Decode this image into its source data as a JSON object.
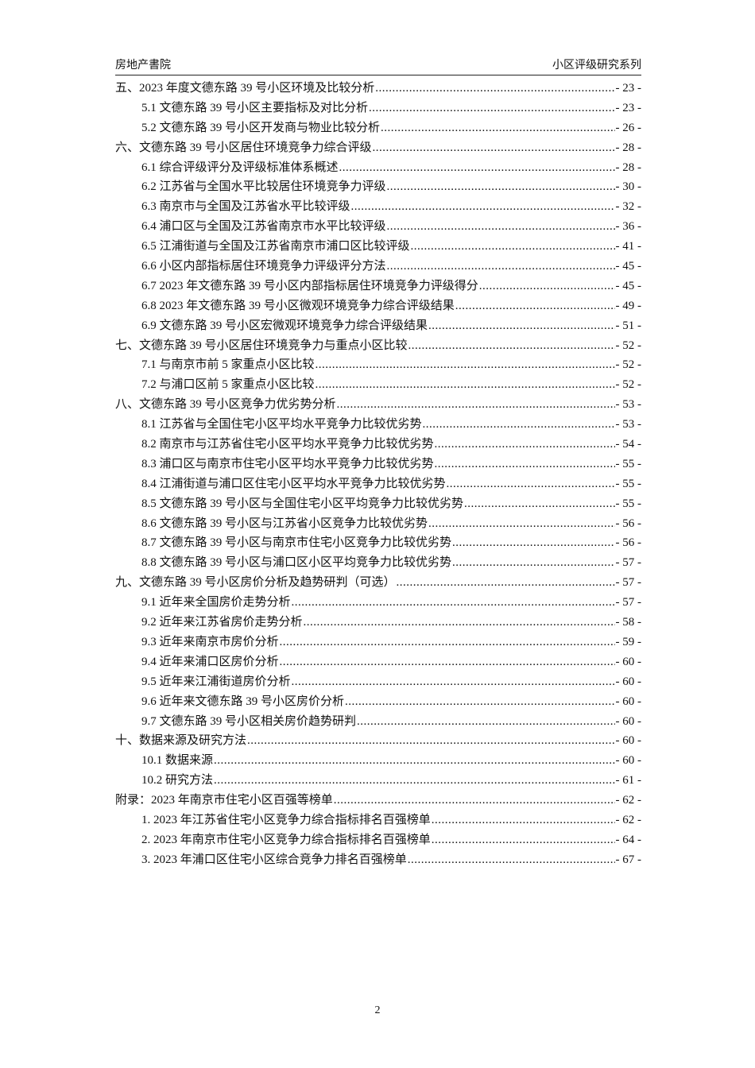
{
  "header": {
    "left": "房地产書院",
    "right": "小区评级研究系列"
  },
  "toc": [
    {
      "level": 1,
      "title": "五、2023 年度文德东路 39 号小区环境及比较分析",
      "page": "- 23 -"
    },
    {
      "level": 2,
      "title": "5.1  文德东路 39 号小区主要指标及对比分析",
      "page": "- 23 -"
    },
    {
      "level": 2,
      "title": "5.2  文德东路 39 号小区开发商与物业比较分析",
      "page": "- 26 -"
    },
    {
      "level": 1,
      "title": "六、文德东路 39 号小区居住环境竞争力综合评级",
      "page": "- 28 -"
    },
    {
      "level": 2,
      "title": "6.1  综合评级评分及评级标准体系概述",
      "page": "- 28 -"
    },
    {
      "level": 2,
      "title": "6.2  江苏省与全国水平比较居住环境竞争力评级",
      "page": "- 30 -"
    },
    {
      "level": 2,
      "title": "6.3  南京市与全国及江苏省水平比较评级",
      "page": "- 32 -"
    },
    {
      "level": 2,
      "title": "6.4  浦口区与全国及江苏省南京市水平比较评级",
      "page": "- 36 -"
    },
    {
      "level": 2,
      "title": "6.5  江浦街道与全国及江苏省南京市浦口区比较评级",
      "page": "- 41 -"
    },
    {
      "level": 2,
      "title": "6.6  小区内部指标居住环境竞争力评级评分方法",
      "page": "- 45 -"
    },
    {
      "level": 2,
      "title": "6.7  2023 年文德东路 39 号小区内部指标居住环境竞争力评级得分",
      "page": "- 45 -"
    },
    {
      "level": 2,
      "title": "6.8  2023 年文德东路 39 号小区微观环境竞争力综合评级结果",
      "page": "- 49 -"
    },
    {
      "level": 2,
      "title": "6.9  文德东路 39 号小区宏微观环境竞争力综合评级结果",
      "page": "- 51 -"
    },
    {
      "level": 1,
      "title": "七、文德东路 39 号小区居住环境竞争力与重点小区比较",
      "page": "- 52 -"
    },
    {
      "level": 2,
      "title": "7.1  与南京市前 5 家重点小区比较",
      "page": "- 52 -"
    },
    {
      "level": 2,
      "title": "7.2  与浦口区前 5 家重点小区比较",
      "page": "- 52 -"
    },
    {
      "level": 1,
      "title": "八、文德东路 39 号小区竞争力优劣势分析",
      "page": "- 53 -"
    },
    {
      "level": 2,
      "title": "8.1  江苏省与全国住宅小区平均水平竞争力比较优劣势",
      "page": "- 53 -"
    },
    {
      "level": 2,
      "title": "8.2  南京市与江苏省住宅小区平均水平竞争力比较优劣势",
      "page": "- 54 -"
    },
    {
      "level": 2,
      "title": "8.3  浦口区与南京市住宅小区平均水平竞争力比较优劣势",
      "page": "- 55 -"
    },
    {
      "level": 2,
      "title": "8.4  江浦街道与浦口区住宅小区平均水平竞争力比较优劣势",
      "page": "- 55 -"
    },
    {
      "level": 2,
      "title": "8.5  文德东路 39 号小区与全国住宅小区平均竞争力比较优劣势",
      "page": "- 55 -"
    },
    {
      "level": 2,
      "title": "8.6  文德东路 39 号小区与江苏省小区竞争力比较优劣势",
      "page": "- 56 -"
    },
    {
      "level": 2,
      "title": "8.7  文德东路 39 号小区与南京市住宅小区竞争力比较优劣势",
      "page": "- 56 -"
    },
    {
      "level": 2,
      "title": "8.8  文德东路 39 号小区与浦口区小区平均竞争力比较优劣势",
      "page": "- 57 -"
    },
    {
      "level": 1,
      "title": "九、文德东路 39 号小区房价分析及趋势研判（可选）",
      "page": "- 57 -"
    },
    {
      "level": 2,
      "title": "9.1  近年来全国房价走势分析",
      "page": "- 57 -"
    },
    {
      "level": 2,
      "title": "9.2  近年来江苏省房价走势分析",
      "page": "- 58 -"
    },
    {
      "level": 2,
      "title": "9.3  近年来南京市房价分析",
      "page": "- 59 -"
    },
    {
      "level": 2,
      "title": "9.4  近年来浦口区房价分析",
      "page": "- 60 -"
    },
    {
      "level": 2,
      "title": "9.5  近年来江浦街道房价分析",
      "page": "- 60 -"
    },
    {
      "level": 2,
      "title": "9.6  近年来文德东路 39 号小区房价分析",
      "page": "- 60 -"
    },
    {
      "level": 2,
      "title": "9.7  文德东路 39 号小区相关房价趋势研判",
      "page": "- 60 -"
    },
    {
      "level": 1,
      "title": "十、数据来源及研究方法",
      "page": "- 60 -"
    },
    {
      "level": 2,
      "title": "10.1  数据来源",
      "page": "- 60 -"
    },
    {
      "level": 2,
      "title": "10.2  研究方法",
      "page": "- 61 -"
    },
    {
      "level": 1,
      "title": "附录：2023 年南京市住宅小区百强等榜单",
      "page": "- 62 -"
    },
    {
      "level": 2,
      "title": "1.  2023 年江苏省住宅小区竞争力综合指标排名百强榜单",
      "page": "- 62 -"
    },
    {
      "level": 2,
      "title": "2.  2023 年南京市住宅小区竞争力综合指标排名百强榜单",
      "page": "- 64 -"
    },
    {
      "level": 2,
      "title": "3.  2023 年浦口区住宅小区综合竞争力排名百强榜单",
      "page": "- 67 -"
    }
  ],
  "footer": {
    "page_number": "2"
  }
}
